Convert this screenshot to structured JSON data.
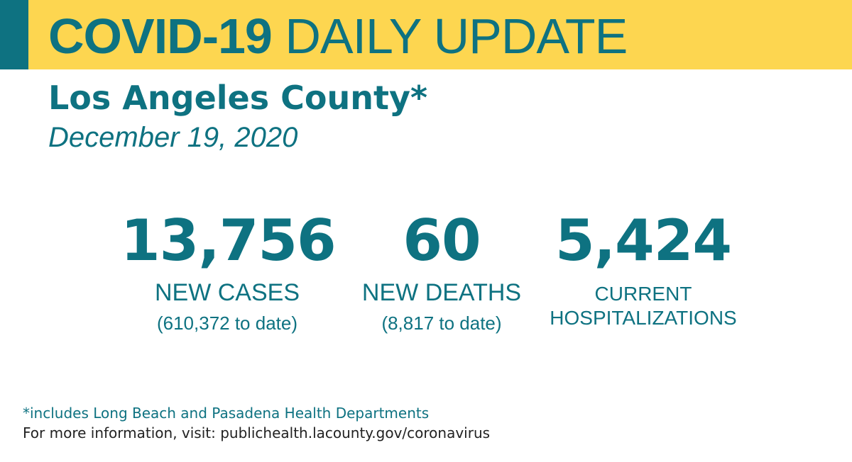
{
  "header": {
    "title_bold": "COVID-19",
    "title_regular": "DAILY UPDATE"
  },
  "location": "Los Angeles County*",
  "date": "December 19, 2020",
  "stats": {
    "cases": {
      "value": "13,756",
      "label": "NEW CASES",
      "to_date": "(610,372 to date)"
    },
    "deaths": {
      "value": "60",
      "label": "NEW DEATHS",
      "to_date": "(8,817 to date)"
    },
    "hospitalizations": {
      "value": "5,424",
      "label_line1": "CURRENT",
      "label_line2": "HOSPITALIZATIONS"
    }
  },
  "footer": {
    "footnote": "*includes Long Beach and Pasadena Health Departments",
    "more_info": "For more information, visit: publichealth.lacounty.gov/coronavirus"
  },
  "colors": {
    "banner": "#fdd650",
    "accent": "#0e7281",
    "text_dark": "#222222"
  }
}
